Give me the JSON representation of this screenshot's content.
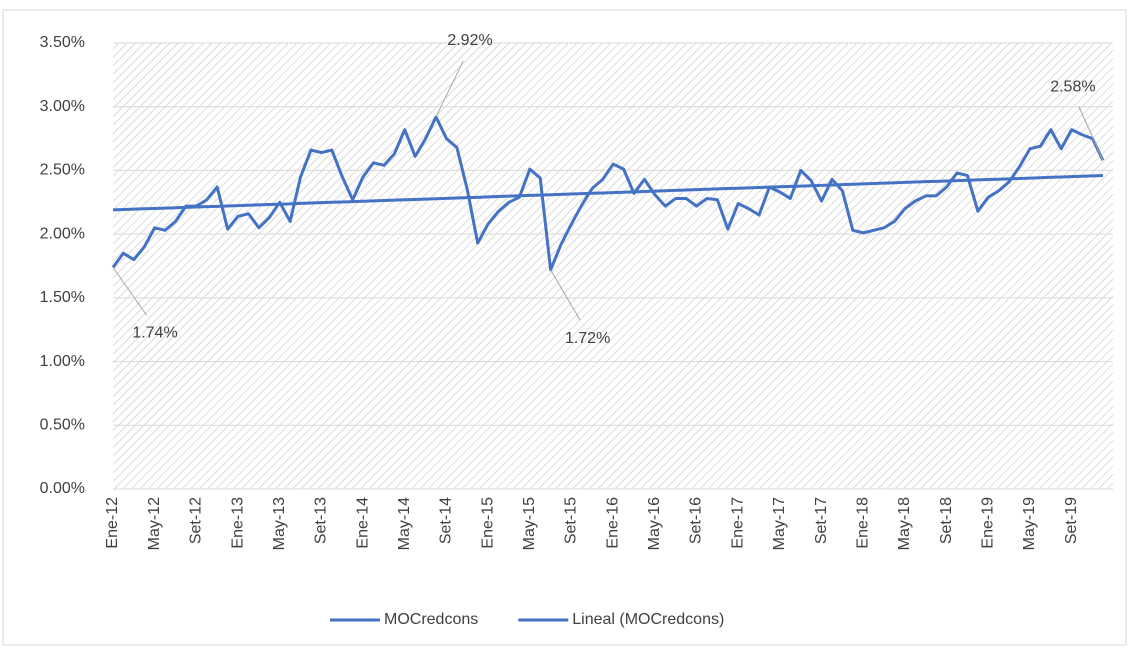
{
  "chart_data": {
    "type": "line",
    "categories": [
      "Ene-12",
      null,
      null,
      null,
      "May-12",
      null,
      null,
      null,
      "Set-12",
      null,
      null,
      null,
      "Ene-13",
      null,
      null,
      null,
      "May-13",
      null,
      null,
      null,
      "Set-13",
      null,
      null,
      null,
      "Ene-14",
      null,
      null,
      null,
      "May-14",
      null,
      null,
      null,
      "Set-14",
      null,
      null,
      null,
      "Ene-15",
      null,
      null,
      null,
      "May-15",
      null,
      null,
      null,
      "Set-15",
      null,
      null,
      null,
      "Ene-16",
      null,
      null,
      null,
      "May-16",
      null,
      null,
      null,
      "Set-16",
      null,
      null,
      null,
      "Ene-17",
      null,
      null,
      null,
      "May-17",
      null,
      null,
      null,
      "Set-17",
      null,
      null,
      null,
      "Ene-18",
      null,
      null,
      null,
      "May-18",
      null,
      null,
      null,
      "Set-18",
      null,
      null,
      null,
      "Ene-19",
      null,
      null,
      null,
      "May-19",
      null,
      null,
      null,
      "Set-19",
      null,
      null,
      null
    ],
    "series": [
      {
        "name": "MOCredcons",
        "color": "#4472c4",
        "values": [
          1.74,
          1.85,
          1.8,
          1.9,
          2.05,
          2.03,
          2.1,
          2.22,
          2.22,
          2.27,
          2.37,
          2.04,
          2.14,
          2.16,
          2.05,
          2.13,
          2.25,
          2.1,
          2.45,
          2.66,
          2.64,
          2.66,
          2.45,
          2.27,
          2.45,
          2.56,
          2.54,
          2.63,
          2.82,
          2.61,
          2.75,
          2.92,
          2.75,
          2.68,
          2.35,
          1.93,
          2.08,
          2.18,
          2.25,
          2.29,
          2.51,
          2.44,
          1.72,
          1.92,
          2.08,
          2.23,
          2.36,
          2.43,
          2.55,
          2.51,
          2.32,
          2.43,
          2.31,
          2.22,
          2.28,
          2.28,
          2.22,
          2.28,
          2.27,
          2.04,
          2.24,
          2.2,
          2.15,
          2.37,
          2.33,
          2.28,
          2.5,
          2.42,
          2.26,
          2.43,
          2.34,
          2.03,
          2.01,
          2.03,
          2.05,
          2.1,
          2.2,
          2.26,
          2.3,
          2.3,
          2.37,
          2.48,
          2.46,
          2.18,
          2.29,
          2.34,
          2.41,
          2.53,
          2.67,
          2.69,
          2.82,
          2.67,
          2.82,
          2.78,
          2.75,
          2.58
        ],
        "value_labels": [
          "1.74%",
          null,
          null,
          null,
          null,
          null,
          null,
          null,
          null,
          null,
          null,
          null,
          null,
          null,
          null,
          null,
          null,
          null,
          null,
          null,
          null,
          null,
          null,
          null,
          null,
          null,
          null,
          null,
          null,
          null,
          null,
          "2.92%",
          null,
          null,
          null,
          null,
          null,
          null,
          null,
          null,
          null,
          null,
          "1.72%",
          null,
          null,
          null,
          null,
          null,
          null,
          null,
          null,
          null,
          null,
          null,
          null,
          null,
          null,
          null,
          null,
          null,
          null,
          null,
          null,
          null,
          null,
          null,
          null,
          null,
          null,
          null,
          null,
          null,
          null,
          null,
          null,
          null,
          null,
          null,
          null,
          null,
          null,
          null,
          null,
          null,
          null,
          null,
          null,
          null,
          null,
          null,
          null,
          null,
          null,
          null,
          null,
          "2.58%"
        ]
      },
      {
        "name": "Lineal (MOCredcons)",
        "color": "#4472c4",
        "values": [
          2.19,
          2.193,
          2.196,
          2.199,
          2.201,
          2.204,
          2.207,
          2.21,
          2.213,
          2.216,
          2.218,
          2.221,
          2.224,
          2.227,
          2.23,
          2.233,
          2.235,
          2.238,
          2.241,
          2.244,
          2.247,
          2.25,
          2.252,
          2.255,
          2.258,
          2.261,
          2.264,
          2.267,
          2.27,
          2.272,
          2.275,
          2.278,
          2.281,
          2.284,
          2.287,
          2.289,
          2.292,
          2.295,
          2.298,
          2.301,
          2.304,
          2.306,
          2.309,
          2.312,
          2.315,
          2.318,
          2.321,
          2.323,
          2.326,
          2.329,
          2.332,
          2.335,
          2.338,
          2.341,
          2.343,
          2.346,
          2.349,
          2.352,
          2.355,
          2.358,
          2.36,
          2.363,
          2.366,
          2.369,
          2.372,
          2.375,
          2.377,
          2.38,
          2.383,
          2.386,
          2.389,
          2.392,
          2.394,
          2.397,
          2.4,
          2.403,
          2.406,
          2.409,
          2.412,
          2.414,
          2.417,
          2.42,
          2.423,
          2.426,
          2.429,
          2.431,
          2.434,
          2.437,
          2.44,
          2.443,
          2.446,
          2.448,
          2.451,
          2.454,
          2.457,
          2.46
        ]
      }
    ],
    "ylim": [
      0,
      3.5
    ],
    "yticks": [
      {
        "value": 0,
        "label": "0.00%"
      },
      {
        "value": 0.5,
        "label": "0.50%"
      },
      {
        "value": 1,
        "label": "1.00%"
      },
      {
        "value": 1.5,
        "label": "1.50%"
      },
      {
        "value": 2,
        "label": "2.00%"
      },
      {
        "value": 2.5,
        "label": "2.50%"
      },
      {
        "value": 3,
        "label": "3.00%"
      },
      {
        "value": 3.5,
        "label": "3.50%"
      }
    ],
    "grid": true,
    "legend": "bottom"
  }
}
